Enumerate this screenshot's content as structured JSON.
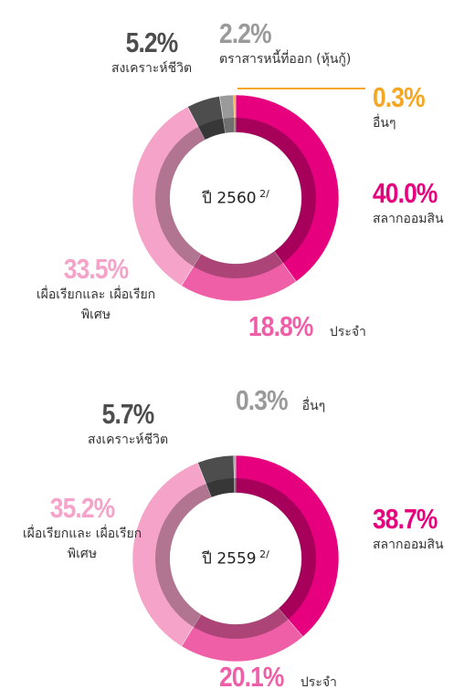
{
  "chart_data": [
    {
      "type": "pie",
      "center_label": "ปี 2560",
      "center_note": "2/",
      "categories": [
        "สลากออมสิน",
        "ประจำ",
        "เผื่อเรียกและ เผื่อเรียกพิเศษ",
        "สงเคราะห์ชีวิต",
        "ตราสารหนี้ที่ออก (หุ้นกู้)",
        "อื่นๆ"
      ],
      "values": [
        40.0,
        18.8,
        33.5,
        5.2,
        2.2,
        0.3
      ],
      "value_labels": [
        "40.0%",
        "18.8%",
        "33.5%",
        "5.2%",
        "2.2%",
        "0.3%"
      ],
      "colors": [
        "#e6007e",
        "#ef5fa7",
        "#f5a3c9",
        "#4d4d4d",
        "#9a9a9a",
        "#f5a623"
      ]
    },
    {
      "type": "pie",
      "center_label": "ปี 2559",
      "center_note": "2/",
      "categories": [
        "สลากออมสิน",
        "ประจำ",
        "เผื่อเรียกและ เผื่อเรียกพิเศษ",
        "สงเคราะห์ชีวิต",
        "อื่นๆ"
      ],
      "values": [
        38.7,
        20.1,
        35.2,
        5.7,
        0.3
      ],
      "value_labels": [
        "38.7%",
        "20.1%",
        "35.2%",
        "5.7%",
        "0.3%"
      ],
      "colors": [
        "#e6007e",
        "#ef5fa7",
        "#f5a3c9",
        "#4d4d4d",
        "#9a9a9a"
      ]
    }
  ]
}
